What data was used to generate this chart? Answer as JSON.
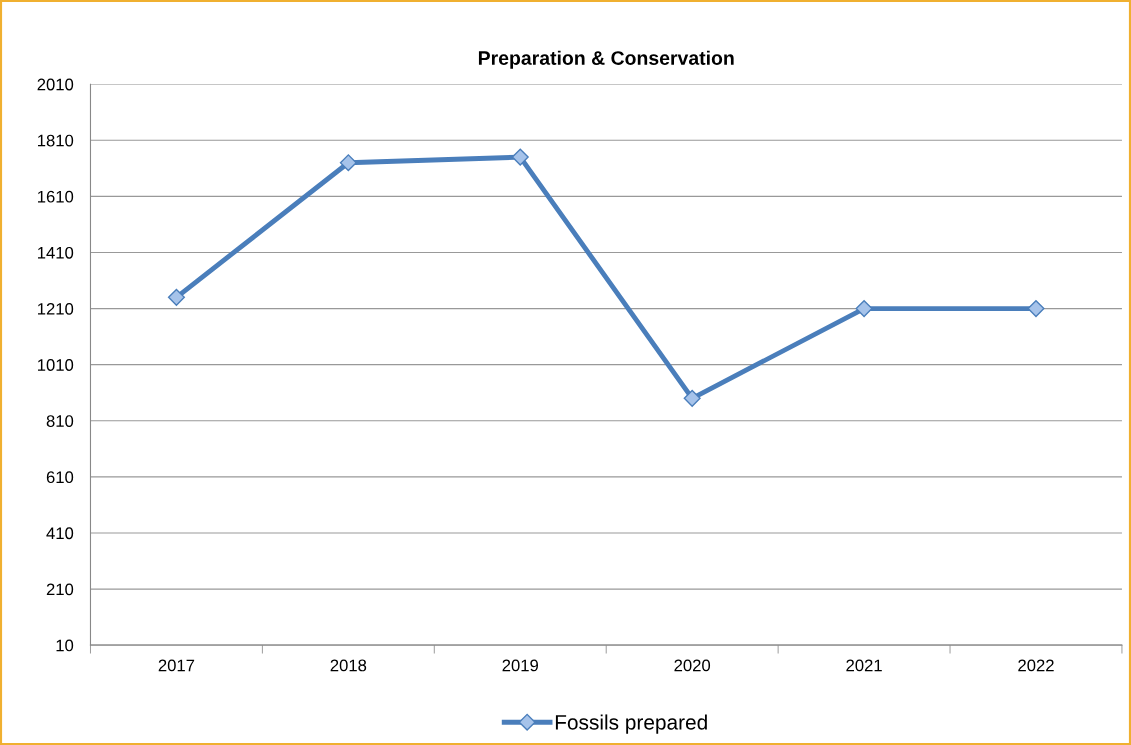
{
  "chart_data": {
    "type": "line",
    "title": "Preparation & Conservation",
    "categories": [
      "2017",
      "2018",
      "2019",
      "2020",
      "2021",
      "2022"
    ],
    "series": [
      {
        "name": "Fossils prepared",
        "color": "#4a7ebb",
        "values": [
          1250,
          1730,
          1750,
          890,
          1210,
          1210
        ]
      }
    ],
    "ylim": [
      10,
      2010
    ],
    "yticks": [
      10,
      210,
      410,
      610,
      810,
      1010,
      1210,
      1410,
      1610,
      1810,
      2010
    ],
    "grid": "y",
    "legend": "bottom",
    "marker": "diamond",
    "line_style": "solid"
  }
}
